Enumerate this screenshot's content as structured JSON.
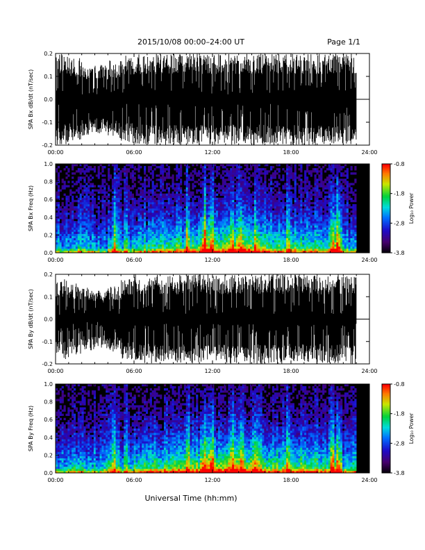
{
  "header": {
    "title": "2015/10/08  00:00–24:00 UT",
    "page": "Page 1/1"
  },
  "footer": {
    "xlabel": "Universal Time (hh:mm)"
  },
  "chart_data": [
    {
      "type": "line",
      "panel": "bx-waveform",
      "ylabel": "SPA Bx dB/dt (nT/sec)",
      "xlim": [
        0,
        24
      ],
      "ylim": [
        -0.2,
        0.2
      ],
      "x_ticks": [
        "00:00",
        "06:00",
        "12:00",
        "18:00",
        "24:00"
      ],
      "y_ticks": [
        "-0.2",
        "-0.1",
        "0.0",
        "0.1",
        "0.2"
      ],
      "data_end_hour": 23.0,
      "series": [
        {
          "color": "#000000",
          "amplitude_profile": [
            0.2,
            0.18,
            0.16,
            0.15,
            0.17,
            0.19,
            0.2,
            0.2,
            0.2,
            0.2,
            0.2,
            0.2,
            0.2,
            0.2,
            0.2,
            0.2,
            0.2,
            0.2,
            0.2,
            0.2,
            0.2,
            0.2,
            0.2
          ]
        }
      ]
    },
    {
      "type": "heatmap",
      "panel": "bx-spectrogram",
      "ylabel": "SPA Bx Freq (Hz)",
      "xlim": [
        0,
        24
      ],
      "ylim": [
        0,
        1.0
      ],
      "x_ticks": [
        "00:00",
        "06:00",
        "12:00",
        "18:00",
        "24:00"
      ],
      "y_ticks": [
        "0.0",
        "0.2",
        "0.4",
        "0.6",
        "0.8",
        "1.0"
      ],
      "colorbar": {
        "label": "Log₁₀ Power",
        "range": [
          -3.8,
          -0.8
        ],
        "ticks": [
          "-0.8",
          "-1.8",
          "-2.8",
          "-3.8"
        ]
      },
      "data_end_hour": 23.0,
      "hourly_activity": [
        0.45,
        0.5,
        0.45,
        0.4,
        0.55,
        0.45,
        0.55,
        0.6,
        0.62,
        0.65,
        0.7,
        0.9,
        0.75,
        0.8,
        0.78,
        0.7,
        0.65,
        0.65,
        0.62,
        0.6,
        0.6,
        0.75,
        0.5
      ]
    },
    {
      "type": "line",
      "panel": "by-waveform",
      "ylabel": "SPA By dB/dt (nT/sec)",
      "xlim": [
        0,
        24
      ],
      "ylim": [
        -0.2,
        0.2
      ],
      "x_ticks": [
        "00:00",
        "06:00",
        "12:00",
        "18:00",
        "24:00"
      ],
      "y_ticks": [
        "-0.2",
        "-0.1",
        "0.0",
        "0.1",
        "0.2"
      ],
      "data_end_hour": 23.0,
      "series": [
        {
          "color": "#000000",
          "amplitude_profile": [
            0.18,
            0.16,
            0.14,
            0.13,
            0.15,
            0.18,
            0.2,
            0.2,
            0.2,
            0.2,
            0.2,
            0.2,
            0.2,
            0.2,
            0.2,
            0.2,
            0.2,
            0.2,
            0.2,
            0.2,
            0.2,
            0.2,
            0.2
          ]
        }
      ]
    },
    {
      "type": "heatmap",
      "panel": "by-spectrogram",
      "ylabel": "SPA By Freq (Hz)",
      "xlim": [
        0,
        24
      ],
      "ylim": [
        0,
        1.0
      ],
      "x_ticks": [
        "00:00",
        "06:00",
        "12:00",
        "18:00",
        "24:00"
      ],
      "y_ticks": [
        "0.0",
        "0.2",
        "0.4",
        "0.6",
        "0.8",
        "1.0"
      ],
      "colorbar": {
        "label": "Log₁₀ Power",
        "range": [
          -3.8,
          -0.8
        ],
        "ticks": [
          "-0.8",
          "-1.8",
          "-2.8",
          "-3.8"
        ]
      },
      "data_end_hour": 23.0,
      "hourly_activity": [
        0.5,
        0.55,
        0.5,
        0.45,
        0.6,
        0.5,
        0.65,
        0.68,
        0.7,
        0.72,
        0.75,
        0.92,
        0.8,
        0.85,
        0.82,
        0.75,
        0.7,
        0.7,
        0.68,
        0.66,
        0.65,
        0.8,
        0.55
      ]
    }
  ]
}
